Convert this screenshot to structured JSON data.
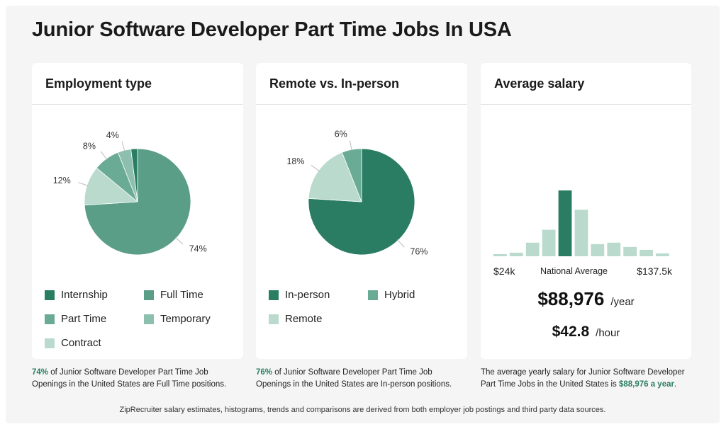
{
  "page": {
    "title": "Junior Software Developer Part Time Jobs In USA",
    "footer": "ZipRecruiter salary estimates, histograms, trends and comparisons are derived from both employer job postings and third party data sources."
  },
  "employment": {
    "heading": "Employment type",
    "caption": {
      "highlight": "74%",
      "text": " of Junior Software Developer Part Time Job Openings in the United States are Full Time positions."
    },
    "legend": [
      {
        "label": "Internship",
        "color": "#2a7d63"
      },
      {
        "label": "Full Time",
        "color": "#5a9e88"
      },
      {
        "label": "Part Time",
        "color": "#6aab96"
      },
      {
        "label": "Temporary",
        "color": "#8dbfae"
      },
      {
        "label": "Contract",
        "color": "#b9dacd"
      }
    ]
  },
  "remote": {
    "heading": "Remote vs. In-person",
    "caption": {
      "highlight": "76%",
      "text": " of Junior Software Developer Part Time Job Openings in the United States are In-person positions."
    },
    "legend": [
      {
        "label": "In-person",
        "color": "#2a7d63"
      },
      {
        "label": "Hybrid",
        "color": "#6aab96"
      },
      {
        "label": "Remote",
        "color": "#b9dacd"
      }
    ]
  },
  "salary": {
    "heading": "Average salary",
    "min_label": "$24k",
    "mid_label": "National Average",
    "max_label": "$137.5k",
    "yearly": "$88,976",
    "yearly_unit": "/year",
    "hourly": "$42.8",
    "hourly_unit": "/hour",
    "caption": {
      "text": "The average yearly salary for Junior Software Developer Part Time Jobs in the United States is ",
      "highlight": "$88,976 a year",
      "end": "."
    }
  },
  "chart_data": [
    {
      "type": "pie",
      "title": "Employment type",
      "slices": [
        {
          "label": "Full Time",
          "value": 74,
          "display": "74%",
          "color": "#5a9e88"
        },
        {
          "label": "Contract",
          "value": 12,
          "display": "12%",
          "color": "#b9dacd"
        },
        {
          "label": "Part Time",
          "value": 8,
          "display": "8%",
          "color": "#6aab96"
        },
        {
          "label": "Temporary",
          "value": 4,
          "display": "4%",
          "color": "#8dbfae"
        },
        {
          "label": "Internship",
          "value": 2,
          "display": "",
          "color": "#2a7d63"
        }
      ]
    },
    {
      "type": "pie",
      "title": "Remote vs. In-person",
      "slices": [
        {
          "label": "In-person",
          "value": 76,
          "display": "76%",
          "color": "#2a7d63"
        },
        {
          "label": "Remote",
          "value": 18,
          "display": "18%",
          "color": "#b9dacd"
        },
        {
          "label": "Hybrid",
          "value": 6,
          "display": "6%",
          "color": "#6aab96"
        }
      ]
    },
    {
      "type": "bar",
      "title": "Average salary",
      "xlim_labels": [
        "$24k",
        "$137.5k"
      ],
      "highlight_index": 4,
      "values": [
        3,
        5,
        19,
        37,
        92,
        65,
        17,
        19,
        13,
        9,
        4
      ],
      "colors": {
        "normal": "#b9dacd",
        "highlight": "#2a7d63"
      }
    }
  ]
}
